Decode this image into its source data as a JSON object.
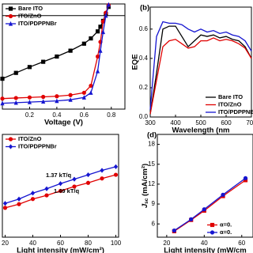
{
  "chart_data": [
    {
      "type": "line",
      "x_label": "Voltage (V)",
      "xlim": [
        0,
        0.9
      ],
      "xticks": [
        0.2,
        0.4,
        0.6,
        0.8
      ],
      "ylim": [
        -16,
        2
      ],
      "zero_line": true,
      "legend": "upper left",
      "x": [
        0,
        0.1,
        0.2,
        0.3,
        0.4,
        0.5,
        0.6,
        0.65,
        0.7,
        0.72,
        0.74,
        0.76,
        0.78
      ],
      "series": [
        {
          "name": "Bare ITO",
          "color": "#000000",
          "marker": "square",
          "values": [
            -10.8,
            -9.8,
            -8.8,
            -7.9,
            -7.0,
            -6.0,
            -4.8,
            -3.9,
            -2.7,
            -1.9,
            -0.9,
            0.3,
            1.5
          ]
        },
        {
          "name": "ITO/ZnO",
          "color": "#e00000",
          "marker": "circle",
          "values": [
            -14.2,
            -14.1,
            -14.0,
            -13.9,
            -13.8,
            -13.6,
            -13.2,
            -12.0,
            -7.0,
            -4.5,
            -1.0,
            0.5,
            1.8
          ]
        },
        {
          "name": "ITO/PDPPNBr",
          "color": "#1515d0",
          "marker": "triangle",
          "values": [
            -15.0,
            -14.9,
            -14.8,
            -14.7,
            -14.6,
            -14.4,
            -14.0,
            -13.2,
            -9.5,
            -6.0,
            -2.8,
            0.0,
            1.9
          ]
        }
      ]
    },
    {
      "type": "line",
      "panel_label": "(b)",
      "x_label": "Wavelength (nm",
      "y_label": "EQE",
      "xlim": [
        300,
        700
      ],
      "xticks": [
        300,
        400,
        500,
        600,
        700
      ],
      "ylim": [
        0,
        0.75
      ],
      "yticks": [
        {
          "value": 0,
          "label": "0.0"
        },
        0.2,
        0.4,
        0.6
      ],
      "legend": "lower right",
      "x": [
        300,
        325,
        350,
        375,
        400,
        425,
        450,
        475,
        500,
        525,
        550,
        575,
        600,
        625,
        650,
        675,
        700
      ],
      "series": [
        {
          "name": "Bare ITO",
          "color": "#000000",
          "values": [
            0.02,
            0.3,
            0.6,
            0.62,
            0.62,
            0.55,
            0.48,
            0.52,
            0.56,
            0.55,
            0.56,
            0.54,
            0.55,
            0.53,
            0.52,
            0.48,
            0.4
          ]
        },
        {
          "name": "ITO/ZnO",
          "color": "#e00000",
          "values": [
            0.02,
            0.25,
            0.48,
            0.52,
            0.53,
            0.5,
            0.47,
            0.48,
            0.52,
            0.52,
            0.54,
            0.52,
            0.53,
            0.52,
            0.5,
            0.47,
            0.4
          ]
        },
        {
          "name": "ITO/PDPPNBr",
          "color": "#1515d0",
          "values": [
            0.05,
            0.55,
            0.65,
            0.64,
            0.64,
            0.63,
            0.6,
            0.58,
            0.6,
            0.58,
            0.59,
            0.57,
            0.58,
            0.56,
            0.55,
            0.52,
            0.45
          ]
        }
      ]
    },
    {
      "type": "line",
      "x_label": "Light intensity (mW/cm²)",
      "xlim": [
        18,
        102
      ],
      "xticks": [
        20,
        40,
        60,
        80,
        100
      ],
      "ylim": [
        0.66,
        0.8
      ],
      "legend": "upper left",
      "annotations": [
        "1.37 kT/q",
        "1.49 kT/q"
      ],
      "x": [
        20,
        30,
        40,
        50,
        60,
        70,
        80,
        90,
        100
      ],
      "series": [
        {
          "name": "ITO/ZnO",
          "color": "#e00000",
          "marker": "circle",
          "values": [
            0.7,
            0.705,
            0.712,
            0.717,
            0.723,
            0.729,
            0.734,
            0.74,
            0.745
          ]
        },
        {
          "name": "ITO/PDPPNBr",
          "color": "#1515d0",
          "marker": "diamond",
          "values": [
            0.706,
            0.712,
            0.72,
            0.726,
            0.733,
            0.739,
            0.745,
            0.751,
            0.756
          ]
        }
      ]
    },
    {
      "type": "line",
      "panel_label": "(d)",
      "x_label": "Light intensity (mW/cm",
      "y_label": {
        "symbol": "J",
        "subscript": "sc",
        "unit": " (mA/cm²)"
      },
      "xlim": [
        15,
        66
      ],
      "xticks": [
        20,
        40,
        60
      ],
      "ylim": [
        4,
        19.5
      ],
      "yticks": [
        6,
        9,
        12,
        15,
        18
      ],
      "legend": "lower right",
      "x": [
        24,
        33,
        40,
        50,
        62
      ],
      "series": [
        {
          "name": "α=0.",
          "color": "#e00000",
          "marker": "square",
          "values": [
            4.9,
            6.6,
            8.0,
            10.2,
            12.6
          ]
        },
        {
          "name": "α=0.",
          "color": "#1515d0",
          "marker": "circle",
          "values": [
            5.0,
            6.7,
            8.2,
            10.4,
            12.9
          ]
        }
      ]
    }
  ]
}
